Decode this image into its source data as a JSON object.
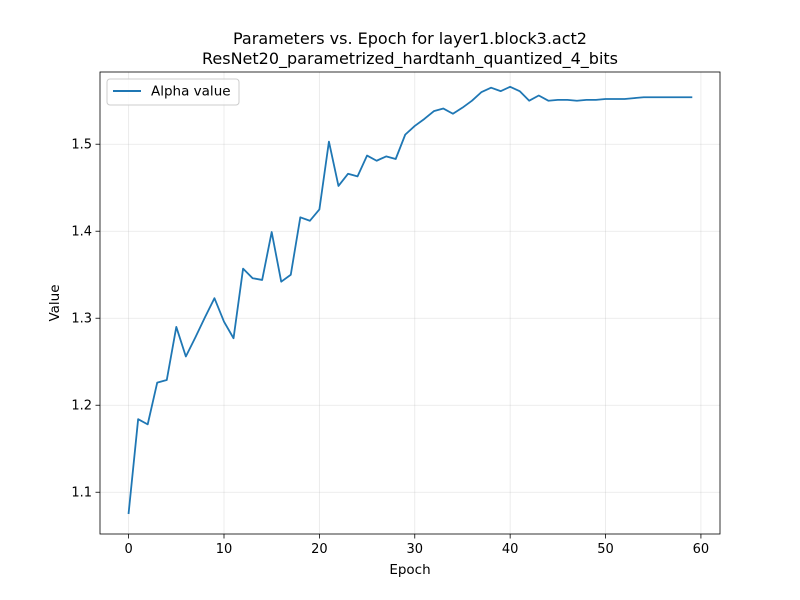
{
  "chart_data": {
    "type": "line",
    "title": "Parameters vs. Epoch for layer1.block3.act2",
    "subtitle": "ResNet20_parametrized_hardtanh_quantized_4_bits",
    "xlabel": "Epoch",
    "ylabel": "Value",
    "xlim": [
      -3,
      62
    ],
    "ylim": [
      1.052,
      1.583
    ],
    "grid": true,
    "legend_position": "top-left",
    "x_ticks": [
      0,
      10,
      20,
      30,
      40,
      50,
      60
    ],
    "y_ticks": [
      1.1,
      1.2,
      1.3,
      1.4,
      1.5
    ],
    "x_tick_labels": [
      "0",
      "10",
      "20",
      "30",
      "40",
      "50",
      "60"
    ],
    "y_tick_labels": [
      "1.1",
      "1.2",
      "1.3",
      "1.4",
      "1.5"
    ],
    "series": [
      {
        "name": "Alpha value",
        "color": "#1f77b4",
        "x": [
          0,
          1,
          2,
          3,
          4,
          5,
          6,
          7,
          8,
          9,
          10,
          11,
          12,
          13,
          14,
          15,
          16,
          17,
          18,
          19,
          20,
          21,
          22,
          23,
          24,
          25,
          26,
          27,
          28,
          29,
          30,
          31,
          32,
          33,
          34,
          35,
          36,
          37,
          38,
          39,
          40,
          41,
          42,
          43,
          44,
          45,
          46,
          47,
          48,
          49,
          50,
          51,
          52,
          53,
          54,
          55,
          56,
          57,
          58,
          59
        ],
        "values": [
          1.076,
          1.184,
          1.178,
          1.226,
          1.229,
          1.29,
          1.256,
          1.278,
          1.301,
          1.323,
          1.296,
          1.277,
          1.357,
          1.346,
          1.344,
          1.399,
          1.342,
          1.35,
          1.416,
          1.412,
          1.425,
          1.503,
          1.452,
          1.466,
          1.463,
          1.487,
          1.481,
          1.486,
          1.483,
          1.511,
          1.521,
          1.529,
          1.538,
          1.541,
          1.535,
          1.542,
          1.55,
          1.56,
          1.565,
          1.561,
          1.566,
          1.561,
          1.55,
          1.556,
          1.55,
          1.551,
          1.551,
          1.55,
          1.551,
          1.551,
          1.552,
          1.552,
          1.552,
          1.553,
          1.554,
          1.554,
          1.554,
          1.554,
          1.554,
          1.554
        ]
      }
    ]
  }
}
